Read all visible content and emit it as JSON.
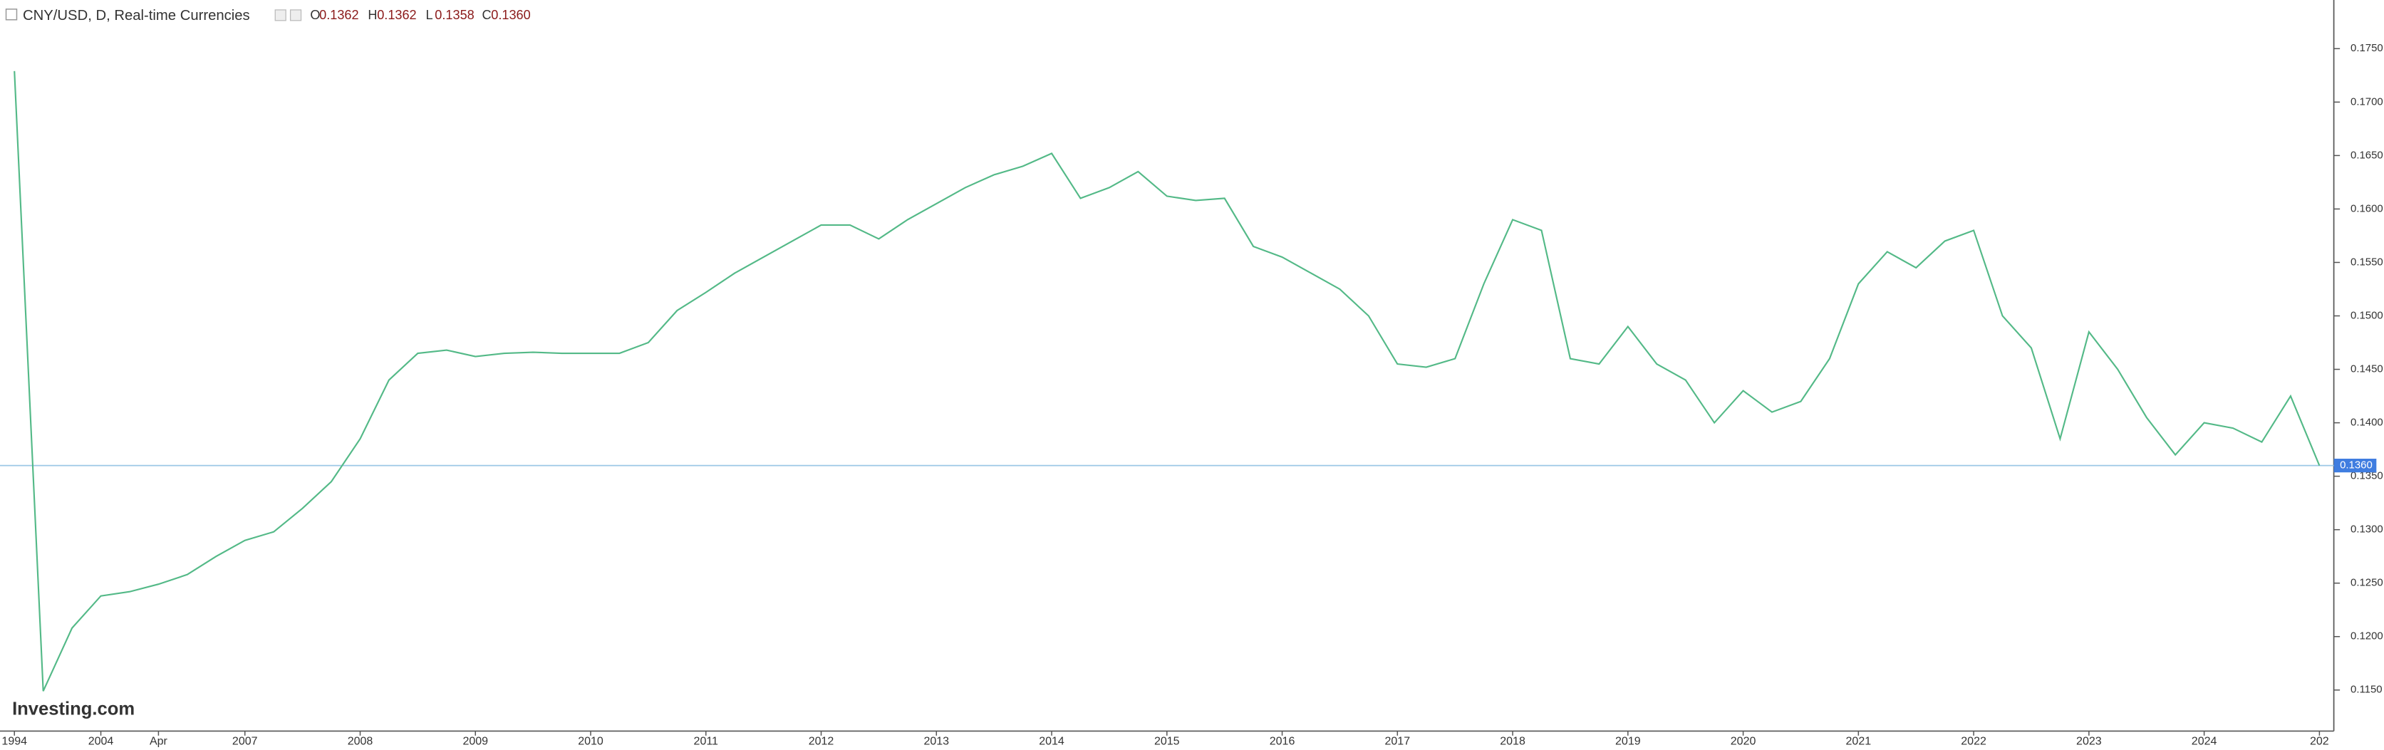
{
  "chart_data": {
    "type": "line",
    "title": "CNY/USD, D, Real-time Currencies",
    "ohlc": [
      {
        "key": "O",
        "value": "0.1362"
      },
      {
        "key": "H",
        "value": "0.1362"
      },
      {
        "key": "L",
        "value": "0.1358"
      },
      {
        "key": "C",
        "value": "0.1360"
      }
    ],
    "watermark": "Investing.com",
    "categories": [
      "1994",
      null,
      null,
      "2004",
      null,
      "Apr",
      null,
      null,
      "2007",
      null,
      null,
      null,
      "2008",
      null,
      null,
      null,
      "2009",
      null,
      null,
      null,
      "2010",
      null,
      null,
      null,
      "2011",
      null,
      null,
      null,
      "2012",
      null,
      null,
      null,
      "2013",
      null,
      null,
      null,
      "2014",
      null,
      null,
      null,
      "2015",
      null,
      null,
      null,
      "2016",
      null,
      null,
      null,
      "2017",
      null,
      null,
      null,
      "2018",
      null,
      null,
      null,
      "2019",
      null,
      null,
      null,
      "2020",
      null,
      null,
      null,
      "2021",
      null,
      null,
      null,
      "2022",
      null,
      null,
      null,
      "2023",
      null,
      null,
      null,
      "2024",
      null,
      null,
      null,
      "202"
    ],
    "series": [
      {
        "name": "CNY/USD",
        "color": "#53b987",
        "values": [
          0.1729,
          0.1149,
          0.1208,
          0.1238,
          0.1242,
          0.1249,
          0.1258,
          0.1275,
          0.129,
          0.1298,
          0.132,
          0.1345,
          0.1385,
          0.144,
          0.1465,
          0.1468,
          0.1462,
          0.1465,
          0.1466,
          0.1465,
          0.1465,
          0.1465,
          0.1475,
          0.1505,
          0.1522,
          0.154,
          0.1555,
          0.157,
          0.1585,
          0.1585,
          0.1572,
          0.159,
          0.1605,
          0.162,
          0.1632,
          0.164,
          0.1652,
          0.161,
          0.162,
          0.1635,
          0.1612,
          0.1608,
          0.161,
          0.1565,
          0.1555,
          0.154,
          0.1525,
          0.15,
          0.1455,
          0.1452,
          0.146,
          0.153,
          0.159,
          0.158,
          0.146,
          0.1455,
          0.149,
          0.1455,
          0.144,
          0.14,
          0.143,
          0.141,
          0.142,
          0.146,
          0.153,
          0.156,
          0.1545,
          0.157,
          0.158,
          0.15,
          0.147,
          0.1385,
          0.1485,
          0.145,
          0.1405,
          0.137,
          0.14,
          0.1395,
          0.1382,
          0.1425,
          0.136
        ]
      }
    ],
    "last": {
      "value": 0.136,
      "label": "0.1360"
    },
    "ylim": [
      0.11116,
      0.17955
    ],
    "yticks": [
      {
        "value": 0.115,
        "label": "0.1150"
      },
      {
        "value": 0.12,
        "label": "0.1200"
      },
      {
        "value": 0.125,
        "label": "0.1250"
      },
      {
        "value": 0.13,
        "label": "0.1300"
      },
      {
        "value": 0.135,
        "label": "0.1350"
      },
      {
        "value": 0.14,
        "label": "0.1400"
      },
      {
        "value": 0.145,
        "label": "0.1450"
      },
      {
        "value": 0.15,
        "label": "0.1500"
      },
      {
        "value": 0.155,
        "label": "0.1550"
      },
      {
        "value": 0.16,
        "label": "0.1600"
      },
      {
        "value": 0.165,
        "label": "0.1650"
      },
      {
        "value": 0.17,
        "label": "0.1700"
      },
      {
        "value": 0.175,
        "label": "0.1750"
      }
    ],
    "grid": false
  }
}
